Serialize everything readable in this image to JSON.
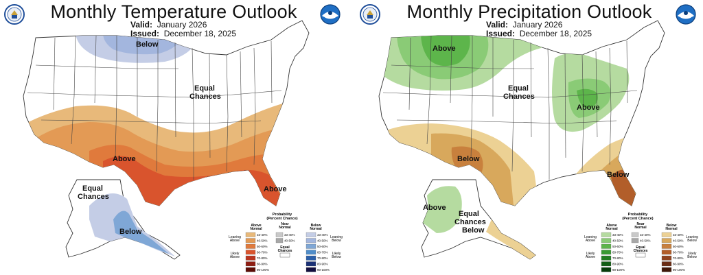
{
  "temperature": {
    "title": "Monthly Temperature Outlook",
    "valid_label": "Valid:",
    "valid_value": "January 2026",
    "issued_label": "Issued:",
    "issued_value": "December 18, 2025",
    "labels": {
      "below_north": "Below",
      "equal_chances_1": "Equal",
      "equal_chances_2": "Chances",
      "above_south": "Above",
      "above_fl": "Above",
      "ak_equal_1": "Equal",
      "ak_equal_2": "Chances",
      "ak_below": "Below"
    }
  },
  "precipitation": {
    "title": "Monthly Precipitation Outlook",
    "valid_label": "Valid:",
    "valid_value": "January 2026",
    "issued_label": "Issued:",
    "issued_value": "December 18, 2025",
    "labels": {
      "above_nw": "Above",
      "equal_chances_1": "Equal",
      "equal_chances_2": "Chances",
      "above_ohio": "Above",
      "below_tx": "Below",
      "below_fl": "Below",
      "ak_above": "Above",
      "ak_equal_1": "Equal",
      "ak_equal_2": "Chances",
      "ak_below": "Below"
    }
  },
  "legend": {
    "title_1": "Probability",
    "title_2": "(Percent Chance)",
    "near_normal_1": "Near",
    "near_normal_2": "Normal",
    "equal_chances_1": "Equal",
    "equal_chances_2": "Chances",
    "leaning_1": "Leaning",
    "likely_1": "Likely",
    "near_ranges": [
      "33-40%",
      "40-50%"
    ],
    "temp": {
      "above_1": "Above",
      "above_2": "Normal",
      "below_1": "Below",
      "below_2": "Normal",
      "leaning_above": "Above",
      "likely_above": "Above",
      "leaning_below": "Below",
      "likely_below": "Below",
      "ranges": [
        "33-40%",
        "40-50%",
        "50-60%",
        "60-70%",
        "70-80%",
        "80-90%",
        "90-100%"
      ]
    },
    "prec": {
      "above_1": "Above",
      "above_2": "Normal",
      "below_1": "Below",
      "below_2": "Normal",
      "leaning_above": "Above",
      "likely_above": "Above",
      "leaning_below": "Below",
      "likely_below": "Below",
      "ranges": [
        "33-40%",
        "40-50%",
        "50-60%",
        "60-70%",
        "70-80%",
        "80-90%",
        "90-100%"
      ]
    }
  },
  "colors": {
    "temp_above": [
      "#e8b97a",
      "#e39a55",
      "#e07a3c",
      "#d9542d",
      "#b8341f",
      "#8e1d12",
      "#5c0c05"
    ],
    "temp_below": [
      "#c4cde6",
      "#a3b6de",
      "#7fa7d6",
      "#4f8dc9",
      "#2b5fa8",
      "#1a3075",
      "#120f3f"
    ],
    "prec_above": [
      "#b5dba0",
      "#8acb76",
      "#5db54b",
      "#3a9a33",
      "#237d22",
      "#125e14",
      "#073d0a"
    ],
    "prec_below": [
      "#ecd194",
      "#d8a85c",
      "#c8803d",
      "#b25e2a",
      "#8f4320",
      "#6a2c14",
      "#3f1708"
    ],
    "near": [
      "#c9c9c9",
      "#a7a7a7"
    ]
  }
}
